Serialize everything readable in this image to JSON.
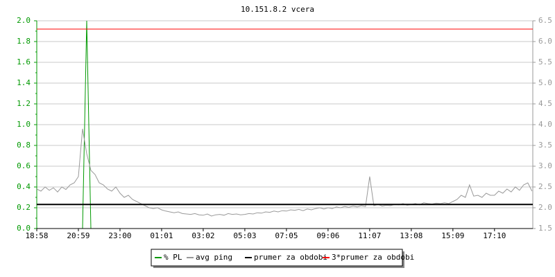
{
  "chart_data": {
    "type": "line",
    "title": "10.151.8.2 vcera",
    "categories": [
      "18:58",
      null,
      null,
      null,
      null,
      null,
      null,
      null,
      null,
      null,
      "20:59",
      null,
      null,
      null,
      null,
      null,
      null,
      null,
      null,
      null,
      "23:00",
      null,
      null,
      null,
      null,
      null,
      null,
      null,
      null,
      null,
      "01:01",
      null,
      null,
      null,
      null,
      null,
      null,
      null,
      null,
      null,
      "03:02",
      null,
      null,
      null,
      null,
      null,
      null,
      null,
      null,
      null,
      "05:03",
      null,
      null,
      null,
      null,
      null,
      null,
      null,
      null,
      null,
      "07:05",
      null,
      null,
      null,
      null,
      null,
      null,
      null,
      null,
      null,
      "09:06",
      null,
      null,
      null,
      null,
      null,
      null,
      null,
      null,
      null,
      "11:07",
      null,
      null,
      null,
      null,
      null,
      null,
      null,
      null,
      null,
      "13:08",
      null,
      null,
      null,
      null,
      null,
      null,
      null,
      null,
      null,
      "15:09",
      null,
      null,
      null,
      null,
      null,
      null,
      null,
      null,
      null,
      "17:10",
      null,
      null,
      null,
      null,
      null,
      null,
      null,
      null,
      null
    ],
    "series": [
      {
        "name": "% PL",
        "color": "#009900",
        "values": [
          0,
          0,
          0,
          0,
          0,
          0,
          0,
          0,
          0,
          0,
          0,
          0,
          2,
          0,
          0,
          0,
          0,
          0,
          0,
          0,
          0,
          0,
          0,
          0,
          0,
          0,
          0,
          0,
          0,
          0,
          0,
          0,
          0,
          0,
          0,
          0,
          0,
          0,
          0,
          0,
          0,
          0,
          0,
          0,
          0,
          0,
          0,
          0,
          0,
          0,
          0,
          0,
          0,
          0,
          0,
          0,
          0,
          0,
          0,
          0,
          0,
          0,
          0,
          0,
          0,
          0,
          0,
          0,
          0,
          0,
          0,
          0,
          0,
          0,
          0,
          0,
          0,
          0,
          0,
          0,
          0,
          0,
          0,
          0,
          0,
          0,
          0,
          0,
          0,
          0,
          0,
          0,
          0,
          0,
          0,
          0,
          0,
          0,
          0,
          0,
          0,
          0,
          0,
          0,
          0,
          0,
          0,
          0,
          0,
          0,
          0,
          0,
          0,
          0,
          0,
          0,
          0,
          0,
          0,
          0
        ]
      },
      {
        "name": "avg ping",
        "color": "#999999",
        "axis": "y2",
        "values": [
          2.45,
          2.4,
          2.5,
          2.42,
          2.48,
          2.38,
          2.5,
          2.44,
          2.55,
          2.6,
          2.75,
          3.9,
          3.3,
          2.9,
          2.8,
          2.6,
          2.55,
          2.45,
          2.4,
          2.5,
          2.35,
          2.25,
          2.3,
          2.2,
          2.15,
          2.1,
          2.05,
          2.0,
          1.98,
          2.0,
          1.95,
          1.92,
          1.9,
          1.88,
          1.9,
          1.86,
          1.85,
          1.84,
          1.86,
          1.83,
          1.82,
          1.85,
          1.8,
          1.83,
          1.84,
          1.82,
          1.86,
          1.84,
          1.85,
          1.83,
          1.84,
          1.86,
          1.85,
          1.88,
          1.87,
          1.9,
          1.89,
          1.92,
          1.9,
          1.93,
          1.92,
          1.95,
          1.94,
          1.96,
          1.93,
          1.97,
          1.95,
          1.98,
          2.0,
          1.97,
          2.0,
          1.98,
          2.02,
          2.0,
          2.03,
          2.01,
          2.04,
          2.02,
          2.05,
          2.03,
          2.75,
          2.05,
          2.08,
          2.04,
          2.06,
          2.05,
          2.08,
          2.07,
          2.1,
          2.06,
          2.08,
          2.1,
          2.07,
          2.12,
          2.1,
          2.09,
          2.11,
          2.1,
          2.12,
          2.1,
          2.15,
          2.2,
          2.3,
          2.25,
          2.55,
          2.28,
          2.3,
          2.25,
          2.35,
          2.3,
          2.3,
          2.4,
          2.35,
          2.45,
          2.38,
          2.5,
          2.42,
          2.55,
          2.6,
          2.4
        ]
      },
      {
        "name": "prumer za obdobi",
        "color": "#000000",
        "axis": "y2",
        "kind": "hline",
        "value": 2.08
      },
      {
        "name": "3*prumer za obdobi",
        "color": "#ff0000",
        "axis": "y2",
        "kind": "hline",
        "value": 6.3
      }
    ],
    "ylim": [
      0,
      2
    ],
    "yticks": [
      {
        "value": 0,
        "label": "0.0"
      },
      0.2,
      0.4,
      0.6,
      0.8,
      {
        "value": 1,
        "label": "1.0"
      },
      1.2,
      1.4,
      1.6,
      1.8,
      {
        "value": 2,
        "label": "2.0"
      }
    ],
    "y2lim": [
      1.5,
      6.5
    ],
    "y2ticks": [
      1.5,
      {
        "value": 2,
        "label": "2.0"
      },
      2.5,
      {
        "value": 3,
        "label": "3.0"
      },
      3.5,
      {
        "value": 4,
        "label": "4.0"
      },
      4.5,
      {
        "value": 5,
        "label": "5.0"
      },
      5.5,
      {
        "value": 6,
        "label": "6.0"
      },
      6.5
    ],
    "grid": true,
    "y_axis_color": "#009900",
    "y2_axis_color": "#999999",
    "legend": "bottom"
  }
}
